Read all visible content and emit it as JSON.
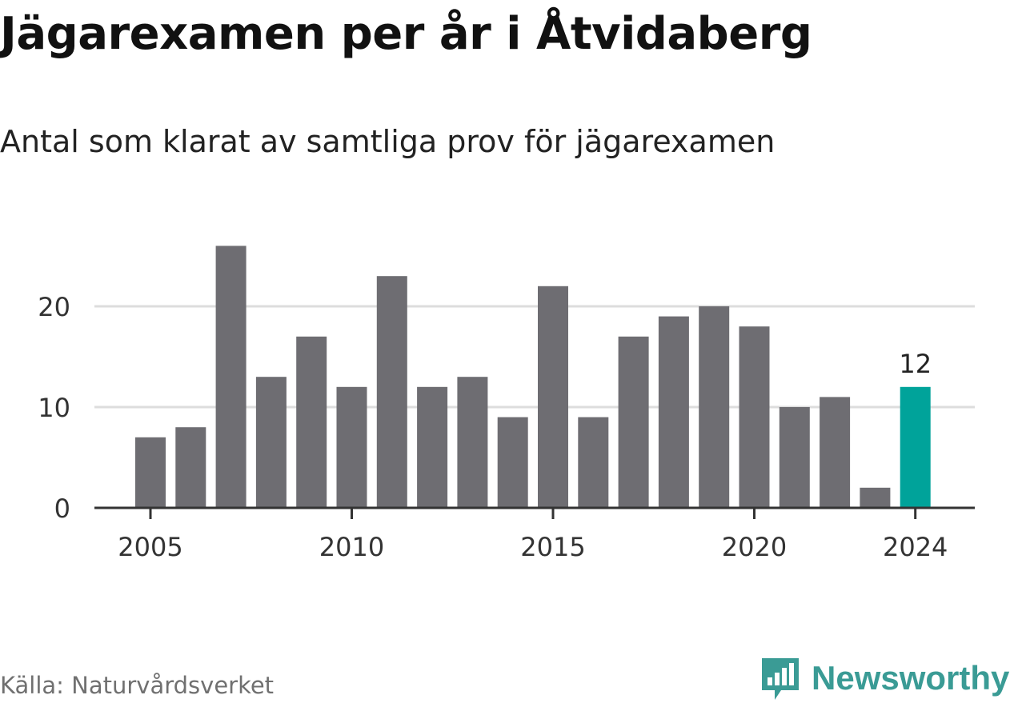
{
  "title": "Jägarexamen per år i Åtvidaberg",
  "subtitle": "Antal som klarat av samtliga prov för jägarexamen",
  "source": "Källa: Naturvårdsverket",
  "brand": "Newsworthy",
  "colors": {
    "bar": "#6e6d72",
    "highlight": "#00a39a",
    "grid": "#dddddd",
    "axis": "#333333",
    "brand": "#3a9b95"
  },
  "chart_data": {
    "type": "bar",
    "categories": [
      "2005",
      "2006",
      "2007",
      "2008",
      "2009",
      "2010",
      "2011",
      "2012",
      "2013",
      "2014",
      "2015",
      "2016",
      "2017",
      "2018",
      "2019",
      "2020",
      "2021",
      "2022",
      "2023",
      "2024"
    ],
    "values": [
      7,
      8,
      26,
      13,
      17,
      12,
      23,
      12,
      13,
      9,
      22,
      9,
      17,
      19,
      20,
      18,
      10,
      11,
      2,
      12
    ],
    "x_tick_labels": [
      "2005",
      "2010",
      "2015",
      "2020",
      "2024"
    ],
    "y_ticks": [
      0,
      10,
      20
    ],
    "ylim": [
      0,
      26
    ],
    "highlight": {
      "category": "2024",
      "label": "12"
    },
    "grid": true
  }
}
